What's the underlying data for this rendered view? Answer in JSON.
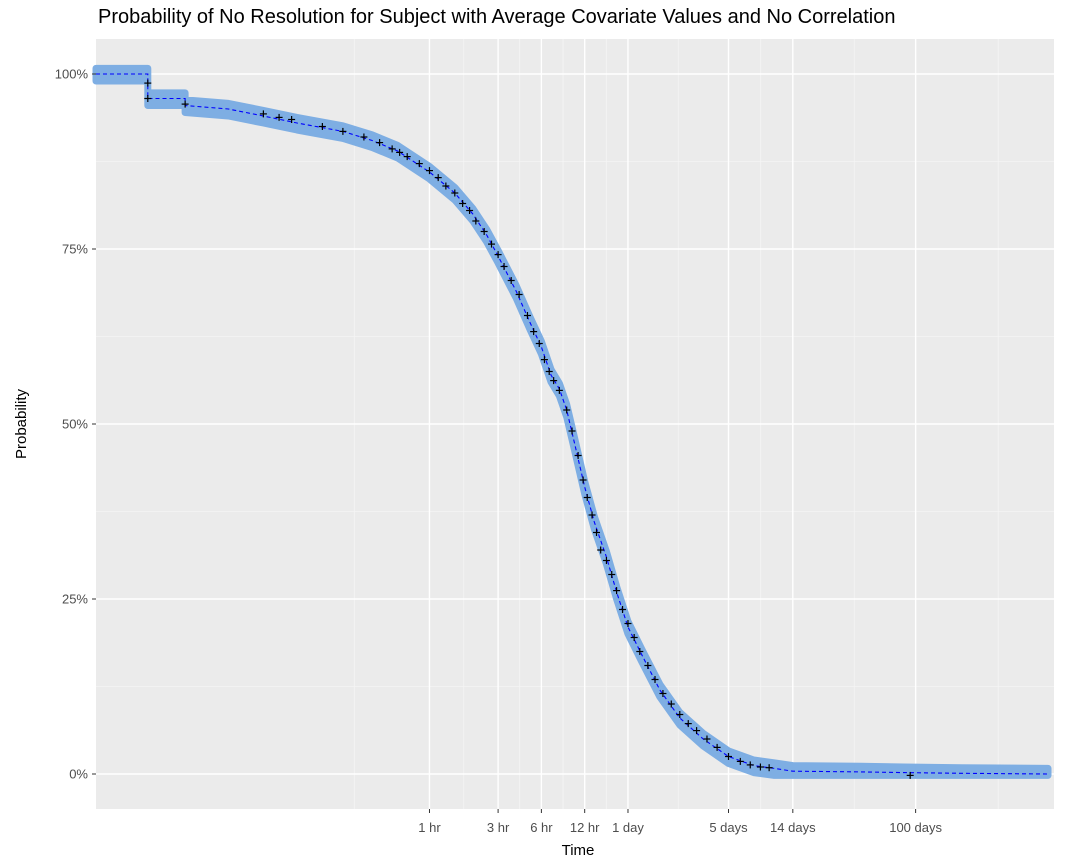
{
  "chart_data": {
    "type": "line",
    "title": "Probability of No Resolution for Subject with Average Covariate Values and No Correlation",
    "xlabel": "Time",
    "ylabel": "Probability",
    "x_scale": "log",
    "x_unit": "hours",
    "y_ticks": [
      {
        "value": 0,
        "label": "0%"
      },
      {
        "value": 0.25,
        "label": "25%"
      },
      {
        "value": 0.5,
        "label": "50%"
      },
      {
        "value": 0.75,
        "label": "75%"
      },
      {
        "value": 1,
        "label": "100%"
      }
    ],
    "x_ticks": [
      {
        "value": 1,
        "label": "1 hr"
      },
      {
        "value": 3,
        "label": "3 hr"
      },
      {
        "value": 6,
        "label": "6 hr"
      },
      {
        "value": 12,
        "label": "12 hr"
      },
      {
        "value": 24,
        "label": "1 day"
      },
      {
        "value": 120,
        "label": "5 days"
      },
      {
        "value": 336,
        "label": "14 days"
      },
      {
        "value": 2400,
        "label": "100 days"
      }
    ],
    "ylim": [
      -0.05,
      1.05
    ],
    "xlim_hours": [
      0.0048,
      22000
    ],
    "grid": true,
    "background": "#ebebeb",
    "colors": {
      "band": "#7eaee3",
      "line": "#0000ff",
      "censor": "#000000"
    },
    "series": [
      {
        "points": [
          [
            0.0048,
            1.0
          ],
          [
            0.011,
            1.0
          ],
          [
            0.011,
            0.965
          ],
          [
            0.02,
            0.965
          ],
          [
            0.02,
            0.955
          ],
          [
            0.04,
            0.95
          ],
          [
            0.07,
            0.94
          ],
          [
            0.12,
            0.93
          ],
          [
            0.25,
            0.918
          ],
          [
            0.4,
            0.905
          ],
          [
            0.6,
            0.89
          ],
          [
            1.0,
            0.86
          ],
          [
            1.5,
            0.83
          ],
          [
            2.0,
            0.8
          ],
          [
            2.5,
            0.77
          ],
          [
            3.0,
            0.74
          ],
          [
            4.0,
            0.69
          ],
          [
            5.0,
            0.645
          ],
          [
            6.0,
            0.61
          ],
          [
            7.0,
            0.57
          ],
          [
            8.0,
            0.55
          ],
          [
            9.0,
            0.52
          ],
          [
            10.0,
            0.48
          ],
          [
            12.0,
            0.41
          ],
          [
            14.0,
            0.36
          ],
          [
            17.0,
            0.31
          ],
          [
            20.0,
            0.26
          ],
          [
            24.0,
            0.21
          ],
          [
            30.0,
            0.17
          ],
          [
            40.0,
            0.12
          ],
          [
            55.0,
            0.08
          ],
          [
            80.0,
            0.05
          ],
          [
            120.0,
            0.025
          ],
          [
            180.0,
            0.012
          ],
          [
            250.0,
            0.008
          ],
          [
            336.0,
            0.004
          ],
          [
            1000.0,
            0.003
          ],
          [
            2000.0,
            0.002
          ],
          [
            5000.0,
            0.001
          ],
          [
            20000.0,
            0.0
          ]
        ],
        "band_halfwidth": 0.008
      }
    ],
    "censor_marks": [
      [
        0.011,
        0.987
      ],
      [
        0.011,
        0.965
      ],
      [
        0.02,
        0.957
      ],
      [
        0.07,
        0.943
      ],
      [
        0.09,
        0.938
      ],
      [
        0.11,
        0.935
      ],
      [
        0.18,
        0.925
      ],
      [
        0.25,
        0.918
      ],
      [
        0.35,
        0.91
      ],
      [
        0.45,
        0.902
      ],
      [
        0.55,
        0.893
      ],
      [
        0.62,
        0.888
      ],
      [
        0.7,
        0.882
      ],
      [
        0.85,
        0.872
      ],
      [
        1.0,
        0.862
      ],
      [
        1.15,
        0.852
      ],
      [
        1.3,
        0.84
      ],
      [
        1.5,
        0.83
      ],
      [
        1.7,
        0.815
      ],
      [
        1.9,
        0.805
      ],
      [
        2.1,
        0.79
      ],
      [
        2.4,
        0.775
      ],
      [
        2.7,
        0.757
      ],
      [
        3.0,
        0.742
      ],
      [
        3.3,
        0.725
      ],
      [
        3.7,
        0.705
      ],
      [
        4.2,
        0.685
      ],
      [
        4.8,
        0.655
      ],
      [
        5.3,
        0.632
      ],
      [
        5.8,
        0.615
      ],
      [
        6.3,
        0.592
      ],
      [
        6.8,
        0.575
      ],
      [
        7.3,
        0.562
      ],
      [
        8.0,
        0.548
      ],
      [
        9.0,
        0.52
      ],
      [
        9.8,
        0.49
      ],
      [
        10.8,
        0.455
      ],
      [
        11.7,
        0.42
      ],
      [
        12.5,
        0.395
      ],
      [
        13.5,
        0.37
      ],
      [
        14.5,
        0.345
      ],
      [
        15.5,
        0.32
      ],
      [
        17.0,
        0.305
      ],
      [
        18.5,
        0.285
      ],
      [
        20.0,
        0.262
      ],
      [
        22.0,
        0.235
      ],
      [
        24.0,
        0.215
      ],
      [
        26.5,
        0.195
      ],
      [
        29.0,
        0.175
      ],
      [
        33.0,
        0.155
      ],
      [
        37.0,
        0.135
      ],
      [
        42.0,
        0.115
      ],
      [
        48.0,
        0.1
      ],
      [
        55.0,
        0.085
      ],
      [
        63.0,
        0.072
      ],
      [
        72.0,
        0.062
      ],
      [
        85.0,
        0.05
      ],
      [
        100.0,
        0.038
      ],
      [
        120.0,
        0.025
      ],
      [
        145.0,
        0.018
      ],
      [
        170.0,
        0.013
      ],
      [
        200.0,
        0.01
      ],
      [
        230.0,
        0.009
      ],
      [
        2200.0,
        -0.002
      ]
    ]
  }
}
